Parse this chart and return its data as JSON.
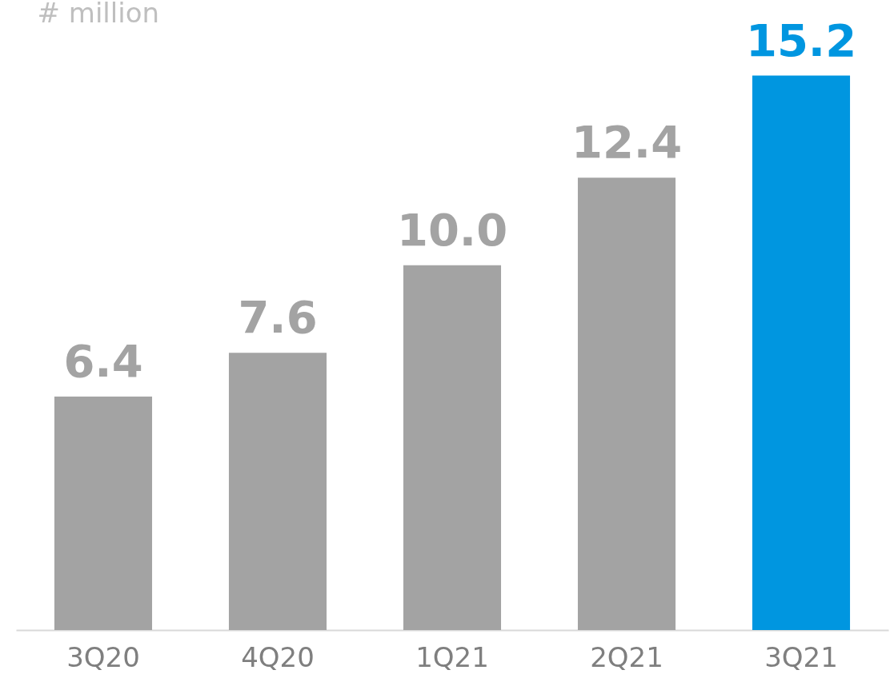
{
  "chart_data": {
    "type": "bar",
    "ylabel": "# million",
    "categories": [
      "3Q20",
      "4Q20",
      "1Q21",
      "2Q21",
      "3Q21"
    ],
    "values": [
      6.4,
      7.6,
      10.0,
      12.4,
      15.2
    ],
    "colors": [
      "#a3a3a3",
      "#a3a3a3",
      "#a3a3a3",
      "#a3a3a3",
      "#0096e0"
    ],
    "value_labels": [
      "6.4",
      "7.6",
      "10.0",
      "12.4",
      "15.2"
    ]
  }
}
